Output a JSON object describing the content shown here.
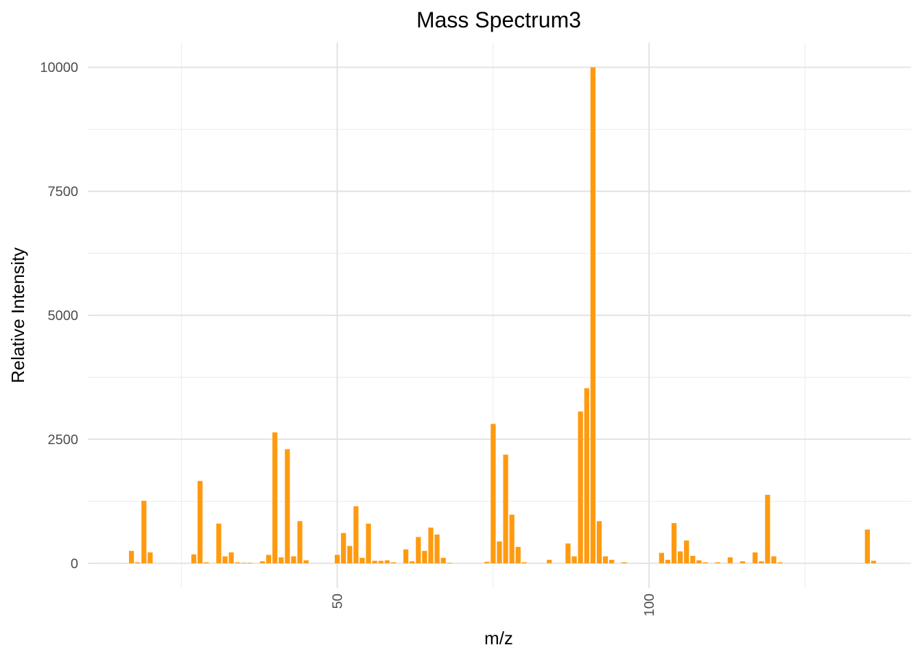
{
  "chart_data": {
    "type": "bar",
    "title": "Mass Spectrum3",
    "xlabel": "m/z",
    "ylabel": "Relative Intensity",
    "xlim": [
      10,
      142
    ],
    "ylim": [
      -500,
      10500
    ],
    "x_ticks": [
      50,
      100
    ],
    "y_ticks": [
      0,
      2500,
      5000,
      7500,
      10000
    ],
    "x_tick_labels": [
      "50",
      "100"
    ],
    "y_tick_labels": [
      "0",
      "2500",
      "5000",
      "7500",
      "10000"
    ],
    "x_minor_ticks": [
      25,
      75,
      125
    ],
    "y_minor_ticks": [
      1250,
      3750,
      6250,
      8750
    ],
    "grid": true,
    "legend": "none",
    "bar_color": "#FF9A0F",
    "x": [
      17,
      18,
      19,
      20,
      27,
      28,
      29,
      31,
      32,
      33,
      34,
      35,
      36,
      38,
      39,
      40,
      41,
      42,
      43,
      44,
      45,
      50,
      51,
      52,
      53,
      54,
      55,
      56,
      57,
      58,
      59,
      61,
      62,
      63,
      64,
      65,
      66,
      67,
      68,
      74,
      75,
      76,
      77,
      78,
      79,
      80,
      84,
      87,
      88,
      89,
      90,
      91,
      92,
      93,
      94,
      96,
      102,
      103,
      104,
      105,
      106,
      107,
      108,
      109,
      111,
      113,
      115,
      117,
      118,
      119,
      120,
      121,
      135,
      136
    ],
    "values": [
      250,
      20,
      1260,
      220,
      180,
      1660,
      20,
      800,
      140,
      220,
      20,
      10,
      10,
      40,
      170,
      2640,
      120,
      2300,
      140,
      850,
      60,
      170,
      610,
      350,
      1150,
      110,
      800,
      50,
      50,
      60,
      20,
      280,
      40,
      530,
      250,
      720,
      580,
      110,
      10,
      30,
      2810,
      440,
      2190,
      980,
      330,
      20,
      70,
      400,
      140,
      3060,
      3530,
      10000,
      850,
      140,
      70,
      20,
      210,
      70,
      810,
      240,
      460,
      150,
      60,
      20,
      20,
      120,
      40,
      220,
      40,
      1380,
      140,
      20,
      680,
      50
    ]
  }
}
